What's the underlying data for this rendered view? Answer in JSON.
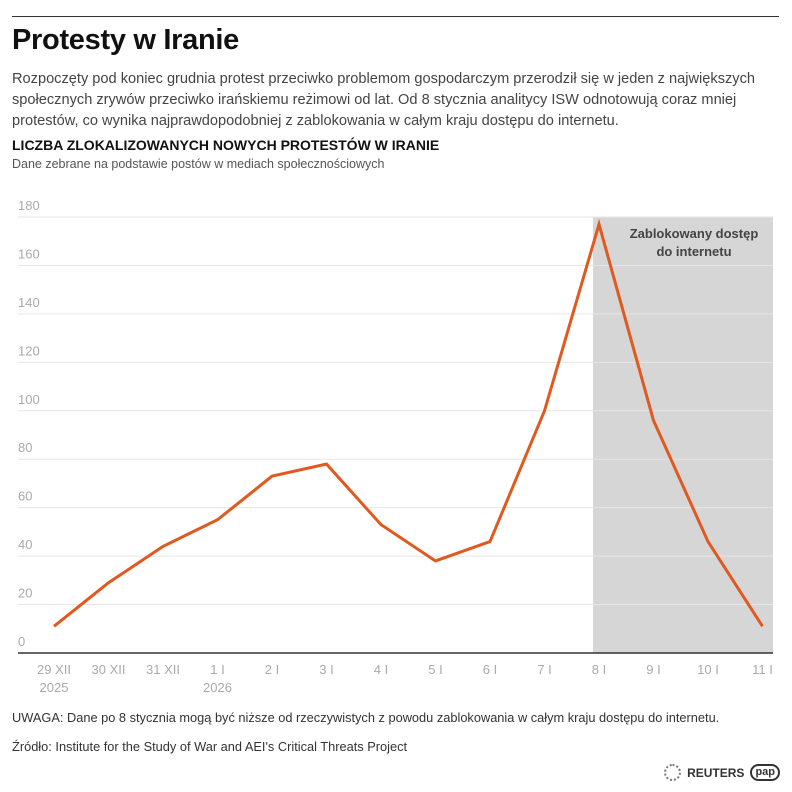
{
  "header": {
    "title": "Protesty w Iranie",
    "intro": "Rozpoczęty pod koniec grudnia protest przeciwko problemom gospodarczym przerodził się w jeden z największych społecznych zrywów przeciwko irańskiemu reżimowi od lat. Od 8 stycznia analitycy ISW odnotowują coraz mniej protestów, co wynika najprawdopodobniej z zablokowania w całym kraju dostępu do internetu."
  },
  "chart_data": {
    "type": "line",
    "title": "LICZBA ZLOKALIZOWANYCH NOWYCH PROTESTÓW W IRANIE",
    "subtitle": "Dane zebrane na podstawie postów w mediach społecznościowych",
    "categories": [
      "29 XII",
      "30 XII",
      "31 XII",
      "1 I",
      "2 I",
      "3 I",
      "4 I",
      "5 I",
      "6 I",
      "7 I",
      "8 I",
      "9 I",
      "10 I",
      "11 I"
    ],
    "year_labels": {
      "0": "2025",
      "3": "2026"
    },
    "values": [
      11,
      29,
      44,
      55,
      73,
      78,
      53,
      38,
      46,
      100,
      177,
      96,
      46,
      11
    ],
    "ylim": [
      0,
      180
    ],
    "yticks": [
      0,
      20,
      40,
      60,
      80,
      100,
      120,
      140,
      160,
      180
    ],
    "grid": true,
    "line_color": "#e0591e",
    "shaded_region": {
      "from": "8 I",
      "to": "11 I",
      "label_line1": "Zablokowany dostęp",
      "label_line2": "do internetu",
      "color": "#d6d6d6"
    }
  },
  "footer": {
    "note": "UWAGA: Dane po 8 stycznia mogą być niższe od rzeczywistych z powodu zablokowania w całym kraju dostępu do internetu.",
    "source": "Źródło: Institute for the Study of War and AEI's Critical Threats Project",
    "logo_reuters": "REUTERS",
    "logo_pap": "pap"
  }
}
